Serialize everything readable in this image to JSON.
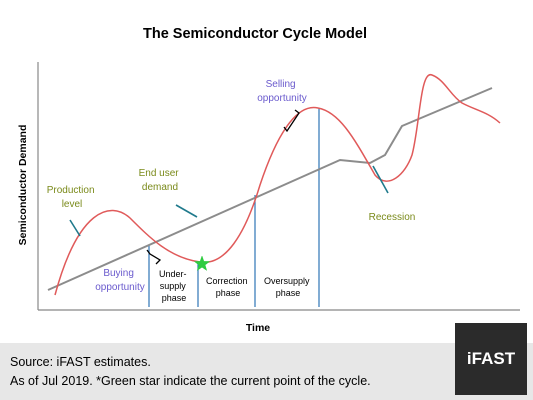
{
  "title": "The Semiconductor Cycle Model",
  "y_axis_label": "Semiconductor Demand",
  "x_axis_label": "Time",
  "labels": {
    "production_level": [
      "Production",
      "level"
    ],
    "end_user_demand": [
      "End user",
      "demand"
    ],
    "selling_opportunity": [
      "Selling",
      "opportunity"
    ],
    "recession": "Recession",
    "buying_opportunity": [
      "Buying",
      "opportunity"
    ],
    "undersupply_phase": [
      "Under-",
      "supply",
      "phase"
    ],
    "correction_phase": [
      "Correction",
      "phase"
    ],
    "oversupply_phase": [
      "Oversupply",
      "phase"
    ]
  },
  "footer": {
    "source": "Source: iFAST estimates.",
    "note": "As of Jul 2019.  *Green star indicate the current point of the cycle."
  },
  "logo_text": "iFAST",
  "colors": {
    "production_curve": "#e05a5a",
    "demand_line": "#8c8c8c",
    "phase_divider": "#2e75b6",
    "green_label": "#7a8a1a",
    "purple_label": "#6a5acd",
    "teal_label": "#1f7a8c",
    "star": "#2ecc40",
    "footer_bg": "#e7e7e7",
    "logo_bg": "#2b2b2b"
  },
  "current_point_marker": "green-star-icon"
}
